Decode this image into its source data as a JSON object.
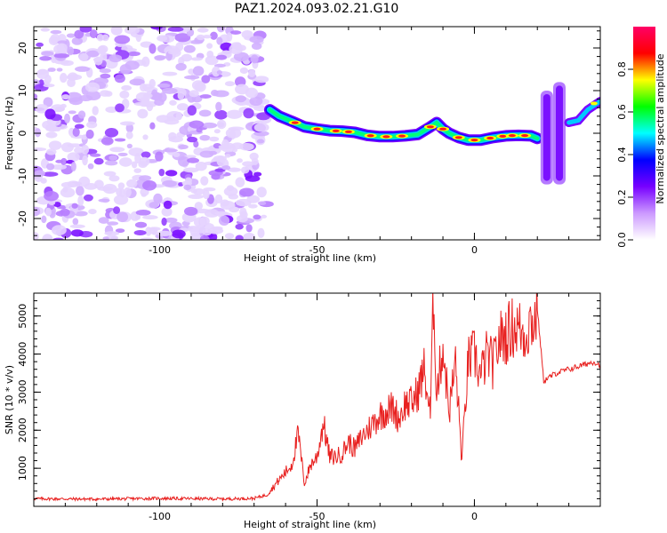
{
  "title": "PAZ1.2024.093.02.21.G10",
  "chart_data": [
    {
      "type": "heatmap",
      "xlabel": "Height of straight line (km)",
      "ylabel": "Frequency (Hz)",
      "xlim": [
        -140,
        40
      ],
      "ylim": [
        -25,
        25
      ],
      "xticks": [
        -100,
        -50,
        0
      ],
      "yticks": [
        -20,
        -10,
        0,
        10,
        20
      ],
      "colorbar": {
        "label": "Normalized spectral amplitude",
        "range": [
          0.0,
          1.0
        ],
        "ticks": [
          0.0,
          0.2,
          0.4,
          0.6,
          0.8
        ],
        "colors": [
          "#ffffff",
          "#cc99ff",
          "#7700ff",
          "#0000ff",
          "#00ffff",
          "#00ff00",
          "#ffff00",
          "#ff0000",
          "#ff0066"
        ]
      },
      "trace": {
        "x": [
          -65,
          -62,
          -58,
          -54,
          -50,
          -46,
          -42,
          -38,
          -34,
          -30,
          -26,
          -22,
          -18,
          -14,
          -12,
          -10,
          -8,
          -5,
          -2,
          2,
          6,
          10,
          14,
          18,
          20
        ],
        "y": [
          5.5,
          4,
          2.8,
          1.5,
          1,
          0.6,
          0.5,
          0.2,
          -0.5,
          -0.8,
          -0.8,
          -0.6,
          -0.3,
          1.5,
          2.5,
          1,
          0,
          -1,
          -1.6,
          -1.6,
          -1,
          -0.6,
          -0.5,
          -0.6,
          -1.2
        ]
      },
      "annotations": [
        {
          "x": 23,
          "yrange": [
            -12,
            10
          ]
        },
        {
          "x": 27,
          "yrange": [
            -12,
            12
          ]
        },
        {
          "curve_x": [
            30,
            33,
            36,
            40
          ],
          "curve_y": [
            2.5,
            3,
            5.5,
            7.5
          ]
        }
      ]
    },
    {
      "type": "line",
      "xlabel": "Height of straight line (km)",
      "ylabel": "SNR (10 * v/v)",
      "xlim": [
        -140,
        40
      ],
      "ylim": [
        0,
        5600
      ],
      "xticks": [
        -100,
        -50,
        0
      ],
      "yticks": [
        1000,
        2000,
        3000,
        4000,
        5000
      ],
      "series": [
        {
          "color": "#e8201f",
          "x": [
            -140,
            -120,
            -100,
            -80,
            -70,
            -66,
            -62,
            -58,
            -56,
            -54,
            -52,
            -50,
            -48,
            -46,
            -44,
            -42,
            -40,
            -38,
            -36,
            -34,
            -32,
            -30,
            -28,
            -26,
            -24,
            -22,
            -20,
            -18,
            -16,
            -14,
            -13,
            -12,
            -10,
            -8,
            -6,
            -4,
            -2,
            0,
            2,
            4,
            6,
            8,
            10,
            12,
            14,
            16,
            18,
            19,
            20,
            22,
            26,
            30,
            34,
            38,
            40
          ],
          "y": [
            200,
            190,
            210,
            195,
            210,
            300,
            700,
            1100,
            1900,
            600,
            1100,
            1300,
            2200,
            1300,
            1300,
            1400,
            1700,
            1500,
            1800,
            2000,
            2200,
            2400,
            2500,
            2600,
            2300,
            2700,
            2700,
            3000,
            3600,
            2400,
            5500,
            3000,
            4200,
            2500,
            3800,
            1200,
            3800,
            4000,
            3400,
            4000,
            3700,
            4400,
            4500,
            4700,
            4700,
            4500,
            4900,
            4800,
            5200,
            3300,
            3500,
            3600,
            3700,
            3800,
            3700
          ]
        }
      ]
    }
  ]
}
